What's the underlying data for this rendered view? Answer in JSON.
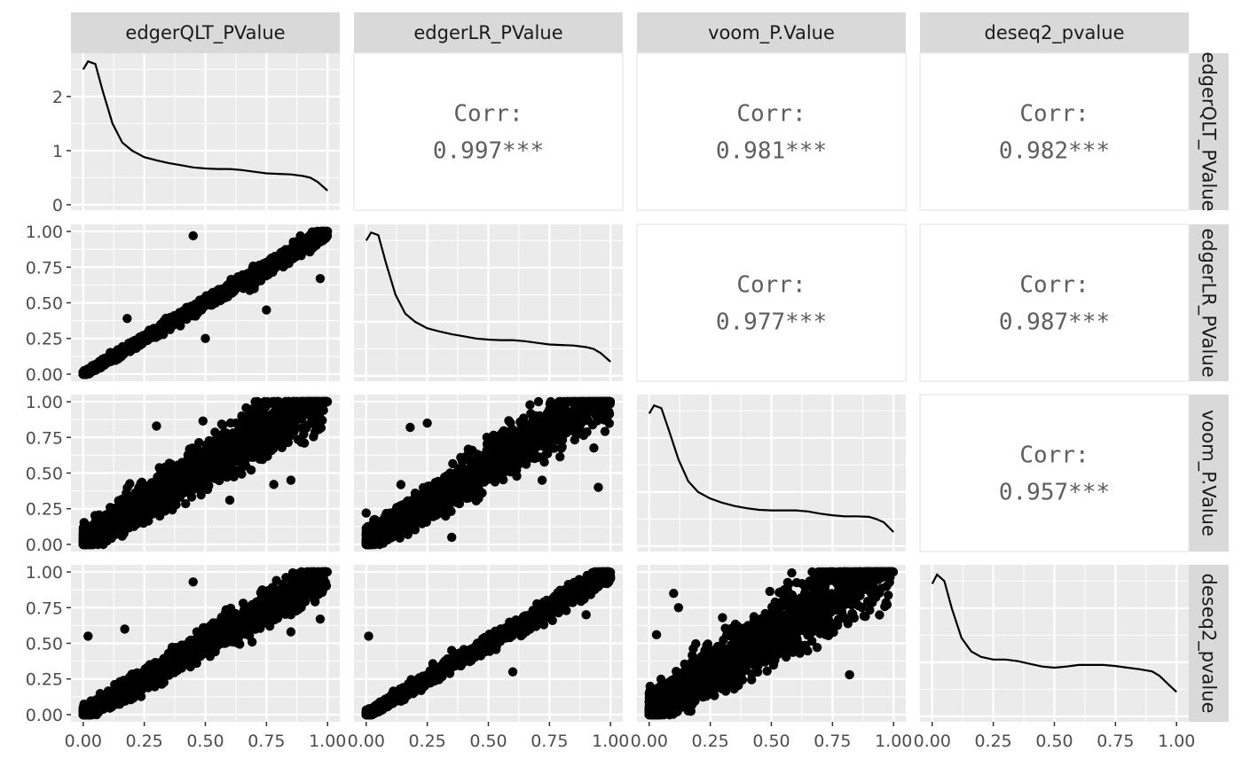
{
  "chart_data": {
    "type": "scatter-matrix",
    "variables": [
      "edgerQLT_PValue",
      "edgerLR_PValue",
      "voom_P.Value",
      "deseq2_pvalue"
    ],
    "x_ticks": [
      "0.00",
      "0.25",
      "0.50",
      "0.75",
      "1.00"
    ],
    "x_tick_values": [
      0,
      0.25,
      0.5,
      0.75,
      1.0
    ],
    "density_y_ticks": [
      "0",
      "1",
      "2"
    ],
    "density_y_tick_values": [
      0,
      1,
      2
    ],
    "density_ylim": [
      -0.1,
      2.8
    ],
    "scatter_y_ticks": [
      "0.00",
      "0.25",
      "0.50",
      "0.75",
      "1.00"
    ],
    "scatter_y_tick_values": [
      0,
      0.25,
      0.5,
      0.75,
      1.0
    ],
    "axis_lim": [
      -0.05,
      1.05
    ],
    "corr_label": "Corr:",
    "correlations": [
      {
        "row": 0,
        "col": 1,
        "value": "0.997***"
      },
      {
        "row": 0,
        "col": 2,
        "value": "0.981***"
      },
      {
        "row": 0,
        "col": 3,
        "value": "0.982***"
      },
      {
        "row": 1,
        "col": 2,
        "value": "0.977***"
      },
      {
        "row": 1,
        "col": 3,
        "value": "0.987***"
      },
      {
        "row": 2,
        "col": 3,
        "value": "0.957***"
      }
    ],
    "densities": [
      {
        "x": [
          0,
          0.02,
          0.05,
          0.08,
          0.12,
          0.16,
          0.2,
          0.25,
          0.3,
          0.35,
          0.4,
          0.45,
          0.5,
          0.55,
          0.6,
          0.65,
          0.7,
          0.75,
          0.8,
          0.85,
          0.9,
          0.93,
          0.96,
          1.0
        ],
        "y": [
          2.5,
          2.65,
          2.6,
          2.1,
          1.5,
          1.15,
          1.0,
          0.88,
          0.82,
          0.77,
          0.73,
          0.69,
          0.67,
          0.66,
          0.66,
          0.64,
          0.61,
          0.58,
          0.57,
          0.56,
          0.53,
          0.5,
          0.42,
          0.26
        ]
      },
      {
        "x": [
          0,
          0.02,
          0.05,
          0.08,
          0.12,
          0.16,
          0.2,
          0.25,
          0.3,
          0.35,
          0.4,
          0.45,
          0.5,
          0.55,
          0.6,
          0.65,
          0.7,
          0.75,
          0.8,
          0.85,
          0.9,
          0.93,
          0.96,
          1.0
        ],
        "y": [
          2.5,
          2.65,
          2.6,
          2.1,
          1.5,
          1.15,
          1.0,
          0.88,
          0.82,
          0.77,
          0.73,
          0.69,
          0.67,
          0.66,
          0.66,
          0.64,
          0.61,
          0.58,
          0.57,
          0.56,
          0.53,
          0.5,
          0.42,
          0.26
        ]
      },
      {
        "x": [
          0,
          0.02,
          0.05,
          0.08,
          0.12,
          0.16,
          0.2,
          0.25,
          0.3,
          0.35,
          0.4,
          0.45,
          0.5,
          0.55,
          0.6,
          0.65,
          0.7,
          0.75,
          0.8,
          0.85,
          0.9,
          0.93,
          0.96,
          1.0
        ],
        "y": [
          2.45,
          2.6,
          2.55,
          2.15,
          1.6,
          1.2,
          1.0,
          0.88,
          0.8,
          0.74,
          0.7,
          0.67,
          0.66,
          0.66,
          0.66,
          0.64,
          0.6,
          0.57,
          0.55,
          0.55,
          0.54,
          0.5,
          0.44,
          0.26
        ]
      },
      {
        "x": [
          0,
          0.02,
          0.05,
          0.08,
          0.12,
          0.16,
          0.2,
          0.25,
          0.3,
          0.35,
          0.4,
          0.45,
          0.5,
          0.55,
          0.6,
          0.65,
          0.7,
          0.75,
          0.8,
          0.85,
          0.9,
          0.93,
          0.96,
          1.0
        ],
        "y": [
          2.45,
          2.62,
          2.5,
          2.0,
          1.45,
          1.2,
          1.1,
          1.05,
          1.05,
          1.02,
          0.97,
          0.92,
          0.9,
          0.92,
          0.95,
          0.95,
          0.95,
          0.93,
          0.9,
          0.87,
          0.83,
          0.75,
          0.62,
          0.45
        ]
      }
    ],
    "scatter_spread": [
      [
        0,
        0,
        0,
        0
      ],
      [
        0.03,
        0,
        0,
        0
      ],
      [
        0.1,
        0.09,
        0,
        0
      ],
      [
        0.07,
        0.04,
        0.13,
        0
      ]
    ],
    "scatter_outliers": [
      [
        [],
        [],
        [],
        []
      ],
      [
        [
          [
            0.45,
            0.97
          ],
          [
            0.5,
            0.25
          ],
          [
            0.18,
            0.39
          ],
          [
            0.97,
            0.67
          ],
          [
            0.7,
            0.6
          ],
          [
            0.75,
            0.45
          ]
        ],
        [],
        [],
        []
      ],
      [
        [
          [
            0.3,
            0.83
          ],
          [
            0.25,
            0.22
          ],
          [
            0.6,
            0.31
          ],
          [
            0.78,
            0.42
          ],
          [
            0.2,
            0.26
          ],
          [
            0.85,
            0.45
          ]
        ],
        [
          [
            0.18,
            0.82
          ],
          [
            0.25,
            0.85
          ],
          [
            0.0,
            0.22
          ],
          [
            0.35,
            0.05
          ],
          [
            0.72,
            0.45
          ],
          [
            0.95,
            0.4
          ]
        ],
        [],
        []
      ],
      [
        [
          [
            0.02,
            0.55
          ],
          [
            0.45,
            0.93
          ],
          [
            0.85,
            0.7
          ],
          [
            0.97,
            0.67
          ],
          [
            0.17,
            0.6
          ],
          [
            0.85,
            0.58
          ]
        ],
        [
          [
            0.01,
            0.55
          ],
          [
            0.9,
            0.7
          ],
          [
            0.35,
            0.45
          ],
          [
            0.6,
            0.3
          ]
        ],
        [
          [
            0.1,
            0.85
          ],
          [
            0.03,
            0.56
          ],
          [
            0.82,
            0.28
          ],
          [
            0.3,
            0.68
          ],
          [
            0.12,
            0.75
          ],
          [
            0.55,
            0.5
          ]
        ],
        []
      ]
    ]
  }
}
